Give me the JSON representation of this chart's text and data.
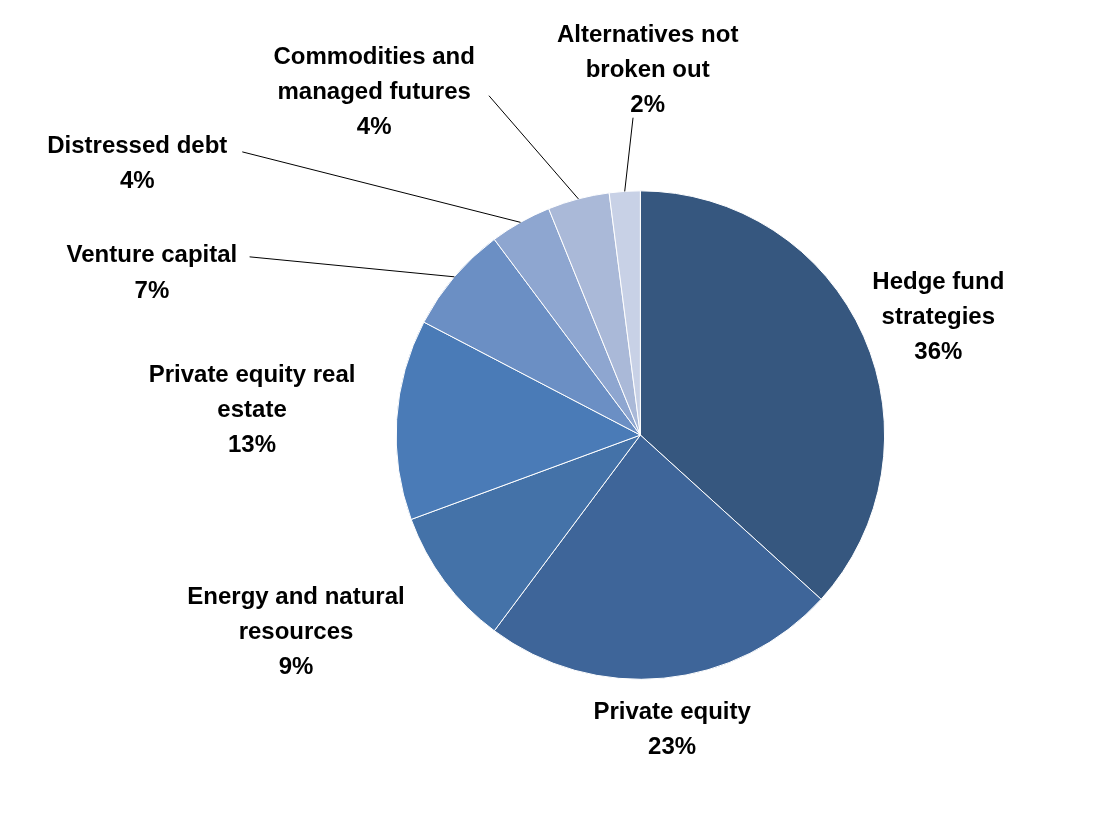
{
  "chart_data": {
    "type": "pie",
    "categories": [
      "Hedge fund strategies",
      "Private equity",
      "Energy and natural resources",
      "Private equity real estate",
      "Venture capital",
      "Distressed debt",
      "Commodities and managed futures",
      "Alternatives not broken out"
    ],
    "values": [
      36,
      23,
      9,
      13,
      7,
      4,
      4,
      2
    ],
    "value_labels": [
      "36%",
      "23%",
      "9%",
      "13%",
      "7%",
      "4%",
      "4%",
      "2%"
    ],
    "colors": [
      "#36577f",
      "#3e6599",
      "#4472a8",
      "#4a7bb7",
      "#6b8fc4",
      "#8ea6d0",
      "#aab9d8",
      "#c8d1e6"
    ]
  }
}
